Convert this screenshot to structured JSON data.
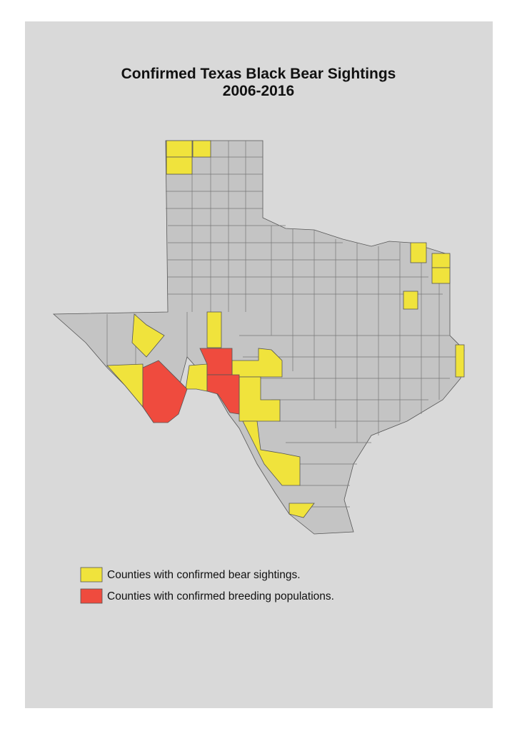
{
  "map": {
    "title": [
      "Confirmed Texas Black Bear Sightings",
      "2006-2016"
    ],
    "legend": [
      {
        "label": "Counties with confirmed bear sightings.",
        "color": "#f0e33c"
      },
      {
        "label": "Counties with confirmed breeding populations.",
        "color": "#ef4b3e"
      }
    ]
  }
}
